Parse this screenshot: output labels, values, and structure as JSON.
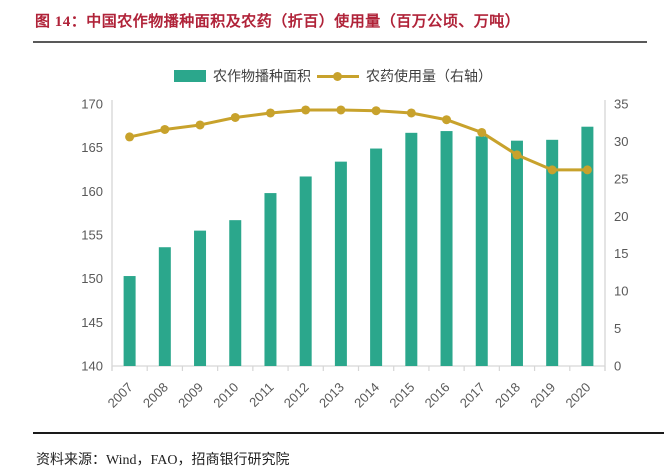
{
  "title": "图 14：中国农作物播种面积及农药（折百）使用量（百万公顷、万吨）",
  "source": "资料来源：Wind，FAO，招商银行研究院",
  "colors": {
    "title_red": "#B02339",
    "bar_teal": "#2BA78C",
    "line_gold": "#C8A22C",
    "axis_line": "#D6D6D6",
    "axis_label": "#595959",
    "divider_top": "#595959",
    "divider_bottom": "#1A1A1A",
    "legend_text": "#3F3F3F"
  },
  "legend": {
    "items": [
      {
        "label": "农作物播种面积",
        "marker": "bar-swatch",
        "color": "#2BA78C"
      },
      {
        "label": "农药使用量（右轴）",
        "marker": "line-dot-swatch",
        "color": "#C8A22C"
      }
    ]
  },
  "chart_data": {
    "type": "bar",
    "subtype": "bar+line combo, dual axis",
    "title": "中国农作物播种面积及农药（折百）使用量",
    "units": "百万公顷、万吨",
    "categories": [
      "2007",
      "2008",
      "2009",
      "2010",
      "2011",
      "2012",
      "2013",
      "2014",
      "2015",
      "2016",
      "2017",
      "2018",
      "2019",
      "2020"
    ],
    "series": [
      {
        "name": "农作物播种面积",
        "chart": "bar",
        "axis": "left",
        "color": "#2BA78C",
        "values": [
          150.3,
          153.6,
          155.5,
          156.7,
          159.8,
          161.7,
          163.4,
          164.9,
          166.7,
          166.9,
          166.3,
          165.8,
          165.9,
          167.4
        ]
      },
      {
        "name": "农药使用量（右轴）",
        "chart": "line",
        "axis": "right",
        "color": "#C8A22C",
        "values": [
          30.6,
          31.6,
          32.2,
          33.2,
          33.8,
          34.2,
          34.2,
          34.1,
          33.8,
          32.9,
          31.2,
          28.2,
          26.2,
          26.2
        ]
      }
    ],
    "left_axis": {
      "min": 140,
      "max": 170,
      "step": 5,
      "tick_labels": [
        "140",
        "145",
        "150",
        "155",
        "160",
        "165",
        "170"
      ]
    },
    "right_axis": {
      "min": 0,
      "max": 35,
      "step": 5,
      "tick_labels": [
        "0",
        "5",
        "10",
        "15",
        "20",
        "25",
        "30",
        "35"
      ]
    },
    "grid": false,
    "legend_position": "top-center",
    "x_tick_label_rotation": -45
  }
}
